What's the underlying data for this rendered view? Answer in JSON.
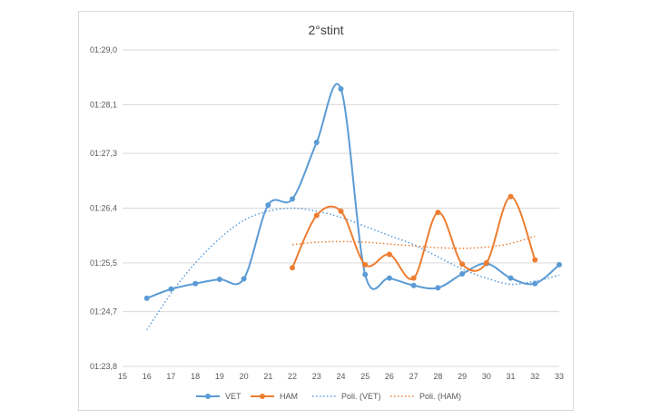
{
  "chart_data": {
    "type": "line",
    "title": "2°stint",
    "x_ticks": [
      15,
      16,
      17,
      18,
      19,
      20,
      21,
      22,
      23,
      24,
      25,
      26,
      27,
      28,
      29,
      30,
      31,
      32,
      33
    ],
    "y_tick_labels": [
      "01:23,8",
      "01:24,7",
      "01:25,5",
      "01:26,4",
      "01:27,3",
      "01:28,1",
      "01:29,0"
    ],
    "y_ticks_seconds": [
      83.8,
      84.7,
      85.5,
      86.4,
      87.3,
      88.1,
      89.0
    ],
    "ylim_seconds": [
      83.8,
      89.0
    ],
    "xlim": [
      15,
      33
    ],
    "grid": "horizontal",
    "legend_position": "bottom",
    "series": [
      {
        "name": "VET",
        "color": "#5b9bd5",
        "style": "smooth-line-markers",
        "x": [
          16,
          17,
          18,
          19,
          20,
          21,
          22,
          23,
          24,
          25,
          26,
          27,
          28,
          29,
          30,
          31,
          32,
          33
        ],
        "y": [
          84.92,
          85.07,
          85.16,
          85.23,
          85.24,
          86.45,
          86.55,
          87.48,
          88.36,
          85.31,
          85.25,
          85.13,
          85.09,
          85.32,
          85.49,
          85.25,
          85.16,
          85.47
        ]
      },
      {
        "name": "HAM",
        "color": "#ed7d31",
        "style": "smooth-line-markers",
        "x": [
          22,
          23,
          24,
          25,
          26,
          27,
          28,
          29,
          30,
          31,
          32
        ],
        "y": [
          85.42,
          86.28,
          86.35,
          85.47,
          85.64,
          85.25,
          86.33,
          85.48,
          85.5,
          86.59,
          85.55
        ]
      },
      {
        "name": "Poli. (VET)",
        "color": "#5b9bd5",
        "style": "dotted-trend",
        "x": [
          16,
          17,
          18,
          19,
          20,
          21,
          22,
          23,
          24,
          25,
          26,
          27,
          28,
          29,
          30,
          31,
          32,
          33
        ],
        "y": [
          84.4,
          85.0,
          85.5,
          85.9,
          86.2,
          86.35,
          86.4,
          86.35,
          86.25,
          86.1,
          85.95,
          85.8,
          85.6,
          85.4,
          85.25,
          85.15,
          85.2,
          85.3
        ]
      },
      {
        "name": "Poli. (HAM)",
        "color": "#ed7d31",
        "style": "dotted-trend",
        "x": [
          22,
          23,
          24,
          25,
          26,
          27,
          28,
          29,
          30,
          31,
          32
        ],
        "y": [
          85.8,
          85.84,
          85.85,
          85.84,
          85.81,
          85.78,
          85.75,
          85.74,
          85.76,
          85.82,
          85.94
        ]
      }
    ]
  }
}
